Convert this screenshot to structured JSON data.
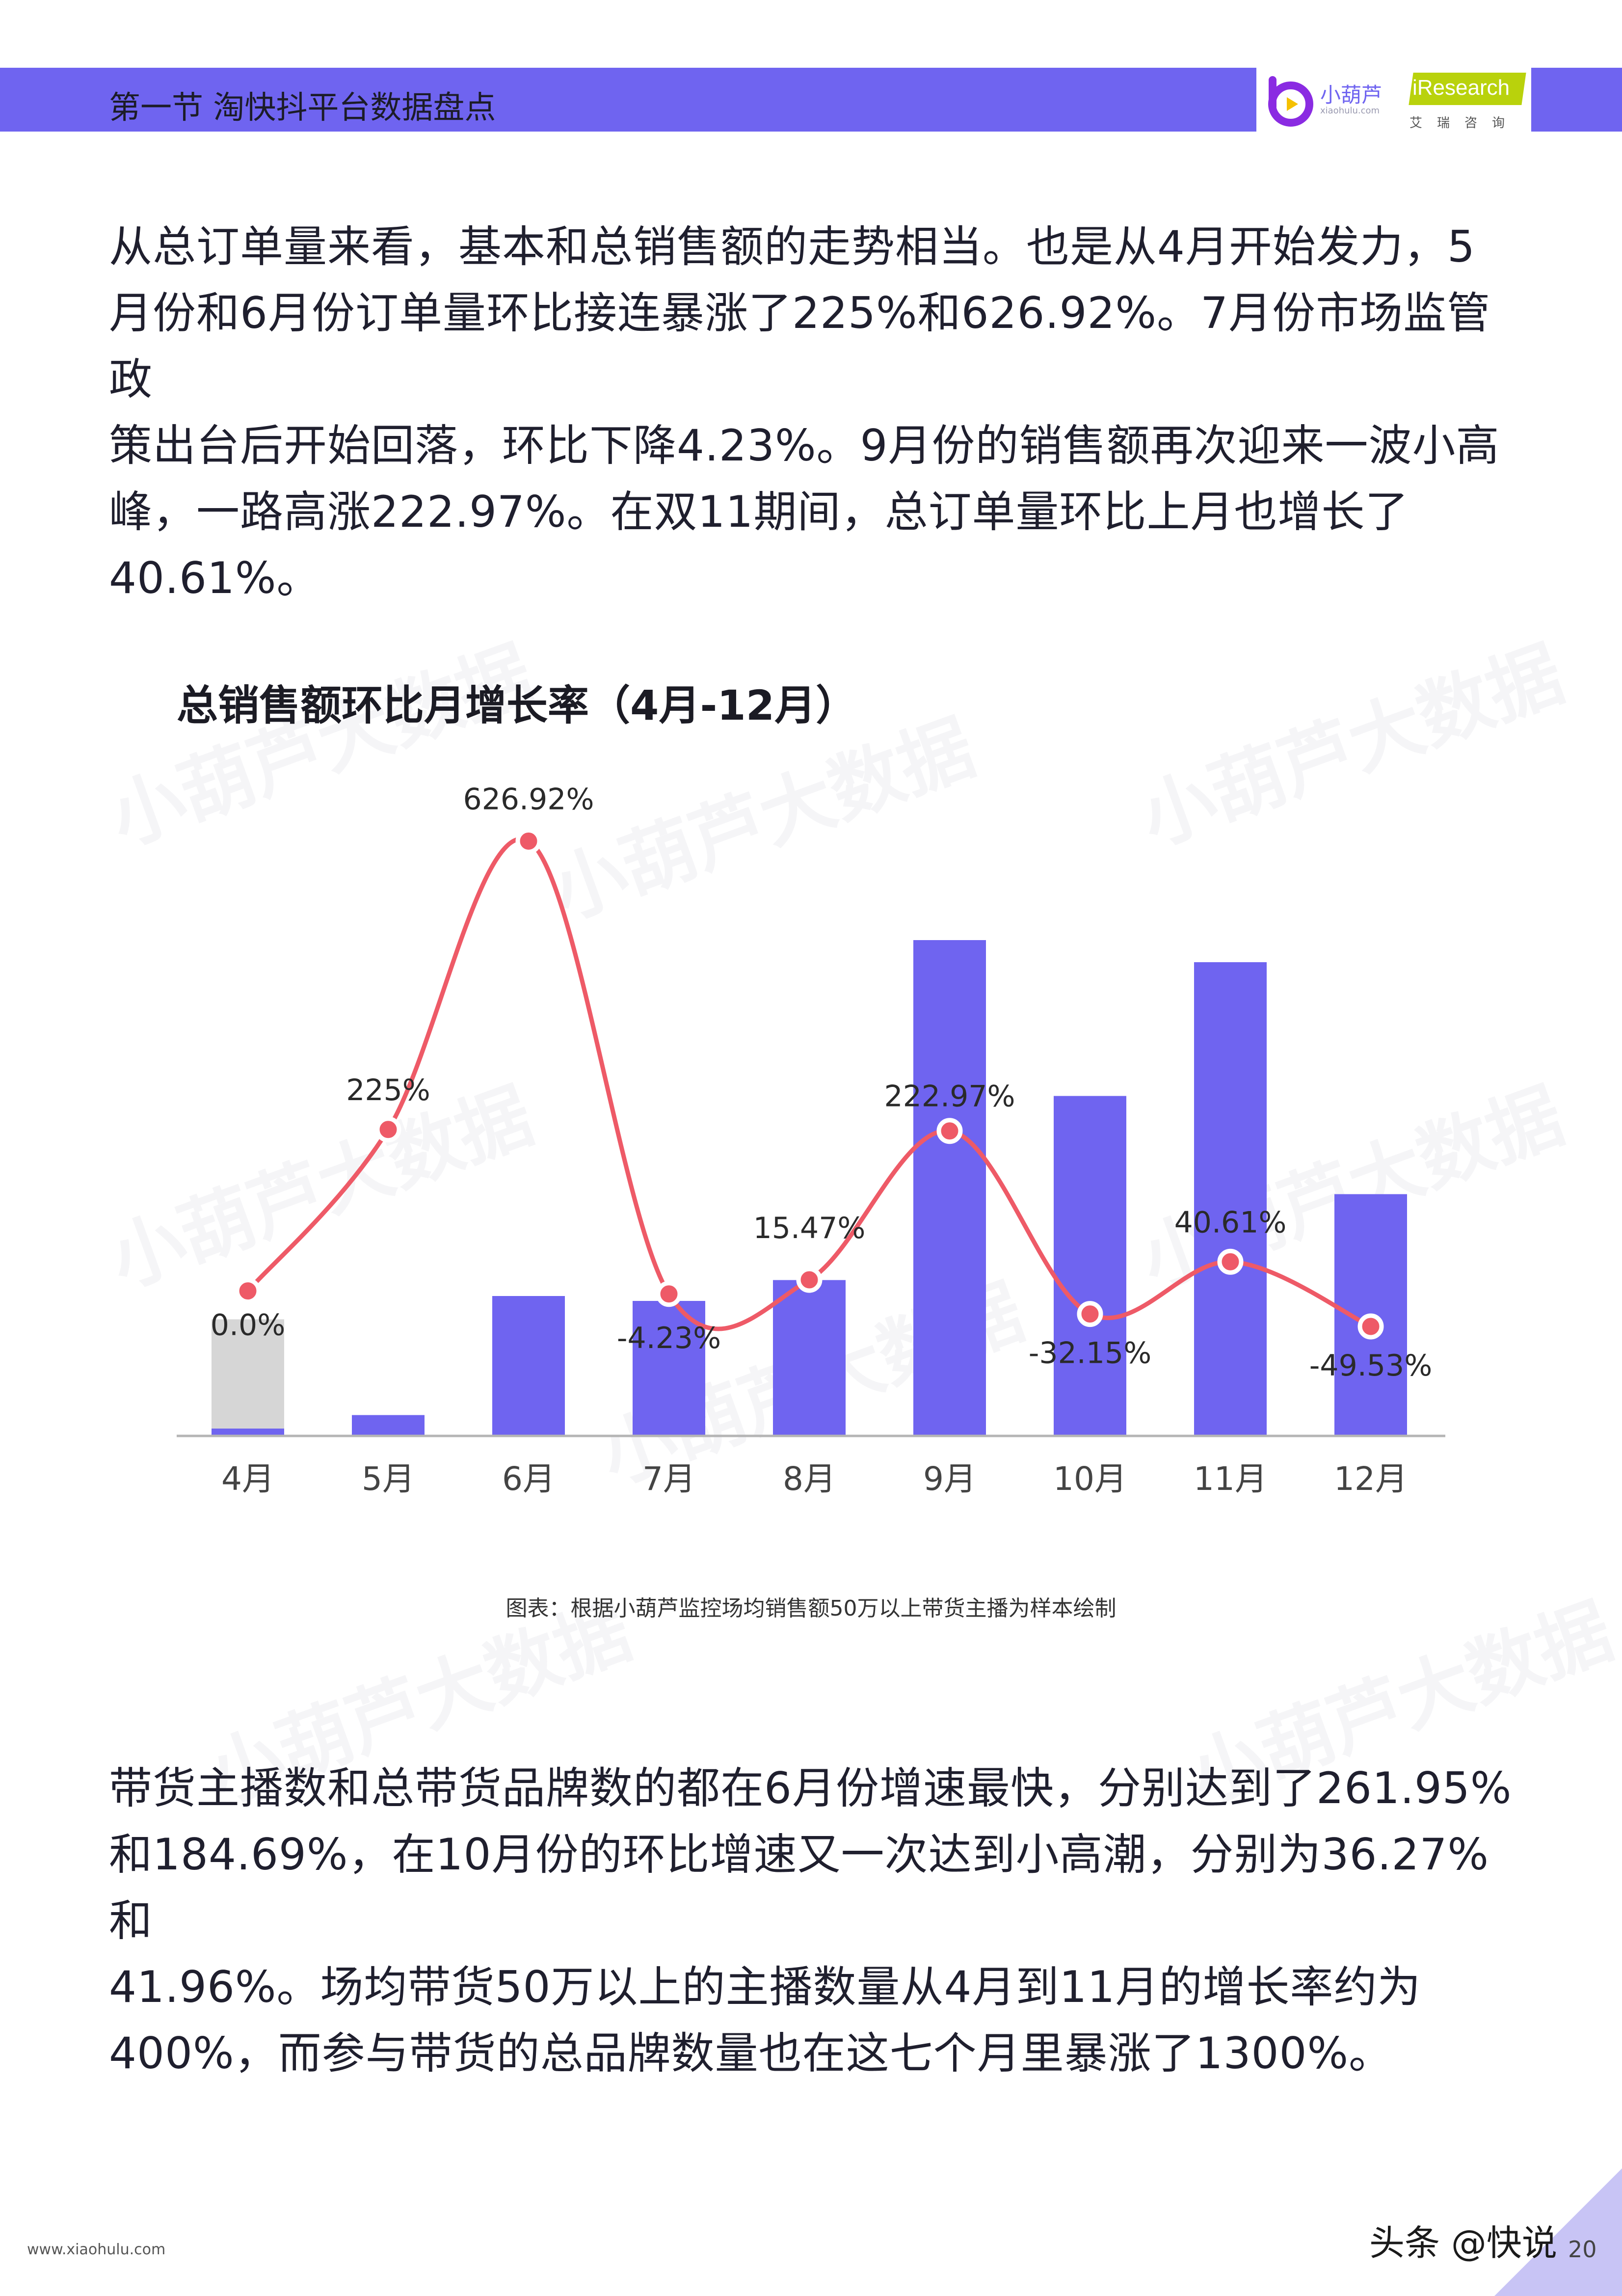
{
  "header": {
    "section_title": "第一节 淘快抖平台数据盘点",
    "brand_name": "小葫芦",
    "brand_url": "xiaohulu.com",
    "partner_name": "iResearch",
    "partner_sub": "艾瑞咨询"
  },
  "paragraph1": [
    "从总订单量来看，基本和总销售额的走势相当。也是从4月开始发力，5",
    "月份和6月份订单量环比接连暴涨了225%和626.92%。7月份市场监管政",
    "策出台后开始回落，环比下降4.23%。9月份的销售额再次迎来一波小高",
    "峰，一路高涨222.97%。在双11期间，总订单量环比上月也增长了",
    "40.61%。"
  ],
  "paragraph2": [
    "带货主播数和总带货品牌数的都在6月份增速最快，分别达到了261.95%",
    "和184.69%，在10月份的环比增速又一次达到小高潮，分别为36.27%和",
    "41.96%。场均带货50万以上的主播数量从4月到11月的增长率约为",
    "400%，而参与带货的总品牌数量也在这七个月里暴涨了1300%。"
  ],
  "chart_note": "图表：根据小葫芦监控场均销售额50万以上带货主播为样本绘制",
  "watermark": "小葫芦大数据",
  "footer": {
    "url": "www.xiaohulu.com",
    "source": "头条 @快说",
    "page": "20"
  },
  "chart_data": {
    "type": "bar",
    "title": "总销售额环比月增长率（4月-12月）",
    "categories": [
      "4月",
      "5月",
      "6月",
      "7月",
      "8月",
      "9月",
      "10月",
      "11月",
      "12月"
    ],
    "series": [
      {
        "kind": "bar",
        "color": "#6f64f0",
        "values": [
          0.6,
          1.7,
          11.4,
          11.0,
          12.7,
          40.4,
          27.7,
          38.6,
          19.7
        ]
      },
      {
        "kind": "bar",
        "color": "#d6d6d6",
        "values": [
          9.5,
          null,
          null,
          null,
          null,
          null,
          null,
          null,
          null
        ]
      },
      {
        "kind": "line",
        "color": "#ee5a67",
        "values": [
          0.0,
          225,
          626.92,
          -4.23,
          15.47,
          222.97,
          -32.15,
          40.61,
          -49.53
        ],
        "labels": [
          "0.0%",
          "225%",
          "626.92%",
          "-4.23%",
          "15.47%",
          "222.97%",
          "-32.15%",
          "40.61%",
          "-49.53%"
        ]
      }
    ],
    "line_axis_range": [
      -120,
      660
    ],
    "bar_axis_range": [
      0,
      40.4
    ],
    "grid": false,
    "legend": "none"
  },
  "colors": {
    "header_band": "#6f64f0",
    "bar": "#6f64f0",
    "bar_gray": "#d6d6d6",
    "line": "#ee5a67"
  }
}
